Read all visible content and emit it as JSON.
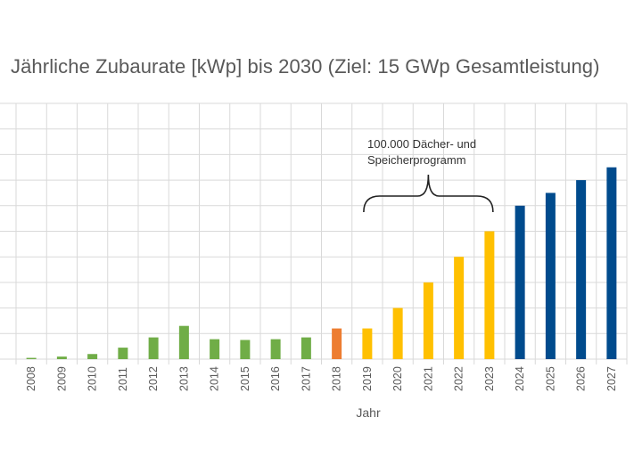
{
  "chart_data": {
    "type": "bar",
    "title": "Jährliche Zubaurate [kWp]  bis 2030 (Ziel: 15 GWp Gesamtleistung)",
    "xlabel": "Jahr",
    "ylabel": "",
    "grid": true,
    "legend": "none",
    "categories": [
      "2008",
      "2009",
      "2010",
      "2011",
      "2012",
      "2013",
      "2014",
      "2015",
      "2016",
      "2017",
      "2018",
      "2019",
      "2020",
      "2021",
      "2022",
      "2023",
      "2024",
      "2025",
      "2026",
      "2027"
    ],
    "values": [
      0.05,
      0.1,
      0.2,
      0.45,
      0.85,
      1.3,
      0.78,
      0.75,
      0.78,
      0.85,
      1.2,
      1.2,
      2.0,
      3.0,
      4.0,
      5.0,
      6.0,
      6.5,
      7.0,
      7.5
    ],
    "ylim": [
      0,
      10
    ],
    "bar_colors": [
      "#70ad47",
      "#70ad47",
      "#70ad47",
      "#70ad47",
      "#70ad47",
      "#70ad47",
      "#70ad47",
      "#70ad47",
      "#70ad47",
      "#70ad47",
      "#ed7d31",
      "#ffc000",
      "#ffc000",
      "#ffc000",
      "#ffc000",
      "#ffc000",
      "#004b8d",
      "#004b8d",
      "#004b8d",
      "#004b8d"
    ],
    "annotations": [
      {
        "text_lines": [
          "100.000 Dächer- und",
          "Speicherprogramm"
        ],
        "span": [
          "2019",
          "2023"
        ]
      }
    ]
  },
  "colors": {
    "grid": "#d9d9d9",
    "text": "#595959",
    "bracket": "#222222"
  }
}
